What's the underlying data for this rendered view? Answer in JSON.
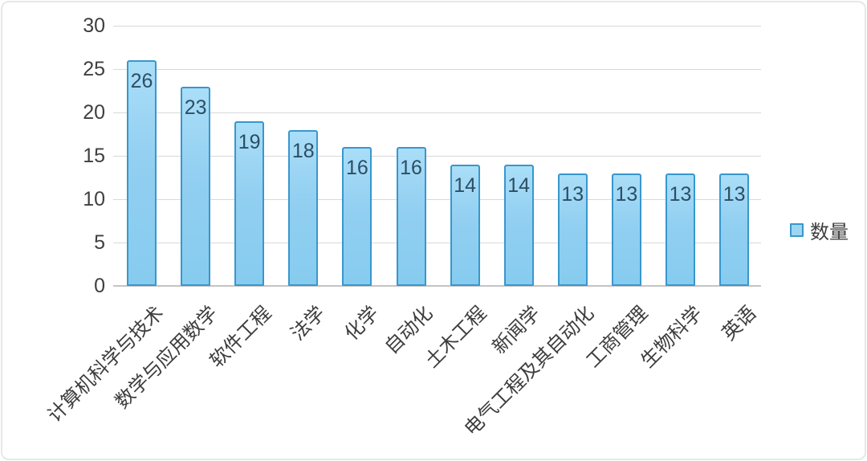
{
  "chart_data": {
    "type": "bar",
    "categories": [
      "计算机科学与技术",
      "数学与应用数学",
      "软件工程",
      "法学",
      "化学",
      "自动化",
      "土木工程",
      "新闻学",
      "电气工程及其自动化",
      "工商管理",
      "生物科学",
      "英语"
    ],
    "values": [
      26,
      23,
      19,
      18,
      16,
      16,
      14,
      14,
      13,
      13,
      13,
      13
    ],
    "series_name": "数量",
    "yticks": [
      0,
      5,
      10,
      15,
      20,
      25,
      30
    ],
    "ylim": [
      0,
      30
    ],
    "grid": true,
    "legend_position": "right",
    "data_labels": "inside-end",
    "colors": {
      "bar_fill": "#92cff1",
      "bar_border": "#3897cd",
      "grid": "#d9d9d9",
      "axis": "#c4c4c4",
      "value_label": "#2c4e63",
      "tick_label": "#3f3f3f",
      "category_label": "#3d3d3d",
      "card_border": "#e3eae6",
      "background": "#ffffff"
    }
  }
}
